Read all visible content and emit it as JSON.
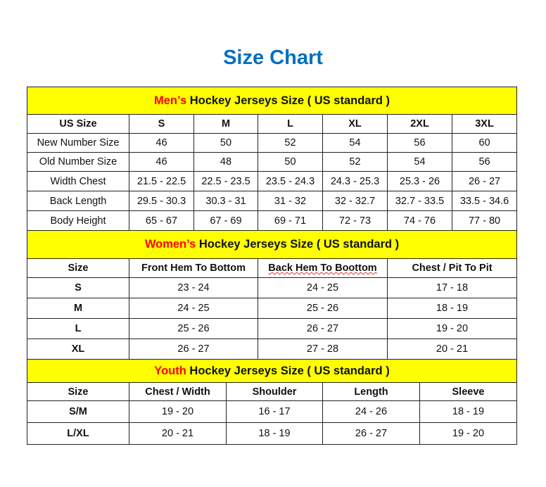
{
  "title": "Size Chart",
  "colors": {
    "title": "#0070C0",
    "section_bg": "#FFFF00",
    "accent": "#FF0000"
  },
  "sections": [
    {
      "accent": "Men’s",
      "rest": " Hockey Jerseys Size ( US standard )",
      "headers": [
        "US Size",
        "S",
        "M",
        "L",
        "XL",
        "2XL",
        "3XL"
      ],
      "rows": [
        [
          "New Number Size",
          "46",
          "50",
          "52",
          "54",
          "56",
          "60"
        ],
        [
          "Old Number Size",
          "46",
          "48",
          "50",
          "52",
          "54",
          "56"
        ],
        [
          "Width Chest",
          "21.5 - 22.5",
          "22.5 - 23.5",
          "23.5 - 24.3",
          "24.3 - 25.3",
          "25.3 - 26",
          "26 - 27"
        ],
        [
          "Back Length",
          "29.5 - 30.3",
          "30.3 - 31",
          "31 - 32",
          "32 - 32.7",
          "32.7 - 33.5",
          "33.5 - 34.6"
        ],
        [
          "Body Height",
          "65 - 67",
          "67 - 69",
          "69 - 71",
          "72 - 73",
          "74 - 76",
          "77 - 80"
        ]
      ]
    },
    {
      "accent": "Women’s",
      "rest": " Hockey Jerseys Size ( US standard )",
      "headers": [
        "Size",
        "Front Hem To Bottom",
        "Back Hem To Boottom",
        "Chest / Pit To Pit"
      ],
      "rows": [
        [
          "S",
          "23 - 24",
          "24 - 25",
          "17 - 18"
        ],
        [
          "M",
          "24 - 25",
          "25 - 26",
          "18 - 19"
        ],
        [
          "L",
          "25 - 26",
          "26 - 27",
          "19 - 20"
        ],
        [
          "XL",
          "26 - 27",
          "27 - 28",
          "20 - 21"
        ]
      ]
    },
    {
      "accent": "Youth",
      "rest": " Hockey Jerseys Size ( US standard )",
      "headers": [
        "Size",
        "Chest / Width",
        "Shoulder",
        "Length",
        "Sleeve"
      ],
      "rows": [
        [
          "S/M",
          "19 - 20",
          "16 - 17",
          "24 - 26",
          "18 - 19"
        ],
        [
          "L/XL",
          "20 - 21",
          "18 - 19",
          "26 - 27",
          "19 - 20"
        ]
      ]
    }
  ]
}
